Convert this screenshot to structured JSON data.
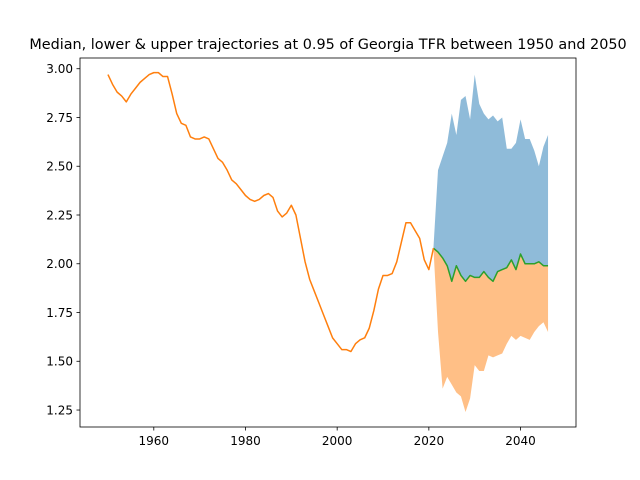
{
  "chart_data": {
    "type": "area",
    "title": "Median, lower & upper trajectories at 0.95 of Georgia TFR between 1950 and 2050",
    "xlabel": "",
    "ylabel": "",
    "xlim": [
      1943.9,
      2052.1
    ],
    "ylim": [
      1.163,
      3.055
    ],
    "grid": false,
    "legend": "none",
    "x_ticks": [
      1960,
      1980,
      2000,
      2020,
      2040
    ],
    "y_ticks": [
      1.25,
      1.5,
      1.75,
      2.0,
      2.25,
      2.5,
      2.75,
      3.0
    ],
    "colors": {
      "historical": "#ff7f0e",
      "median": "#2ca02c",
      "upper_band": "#1f77b4",
      "lower_band": "#ff7f0e"
    },
    "historical": {
      "x": [
        1950,
        1951,
        1952,
        1953,
        1954,
        1955,
        1956,
        1957,
        1958,
        1959,
        1960,
        1961,
        1962,
        1963,
        1964,
        1965,
        1966,
        1967,
        1968,
        1969,
        1970,
        1971,
        1972,
        1973,
        1974,
        1975,
        1976,
        1977,
        1978,
        1979,
        1980,
        1981,
        1982,
        1983,
        1984,
        1985,
        1986,
        1987,
        1988,
        1989,
        1990,
        1991,
        1992,
        1993,
        1994,
        1995,
        1996,
        1997,
        1998,
        1999,
        2000,
        2001,
        2002,
        2003,
        2004,
        2005,
        2006,
        2007,
        2008,
        2009,
        2010,
        2011,
        2012,
        2013,
        2014,
        2015,
        2016,
        2017,
        2018,
        2019,
        2020,
        2021
      ],
      "y": [
        2.97,
        2.92,
        2.88,
        2.86,
        2.83,
        2.87,
        2.9,
        2.93,
        2.95,
        2.97,
        2.98,
        2.98,
        2.96,
        2.96,
        2.87,
        2.77,
        2.72,
        2.71,
        2.65,
        2.64,
        2.64,
        2.65,
        2.64,
        2.59,
        2.54,
        2.52,
        2.48,
        2.43,
        2.41,
        2.38,
        2.35,
        2.33,
        2.32,
        2.33,
        2.35,
        2.36,
        2.34,
        2.27,
        2.24,
        2.26,
        2.3,
        2.25,
        2.13,
        2.01,
        1.92,
        1.86,
        1.8,
        1.74,
        1.68,
        1.62,
        1.59,
        1.56,
        1.56,
        1.55,
        1.59,
        1.61,
        1.62,
        1.67,
        1.76,
        1.87,
        1.94,
        1.94,
        1.95,
        2.01,
        2.11,
        2.21,
        2.21,
        2.17,
        2.13,
        2.02,
        1.97,
        2.08
      ]
    },
    "projection": {
      "x": [
        2021,
        2022,
        2023,
        2024,
        2025,
        2026,
        2027,
        2028,
        2029,
        2030,
        2031,
        2032,
        2033,
        2034,
        2035,
        2036,
        2037,
        2038,
        2039,
        2040,
        2041,
        2042,
        2043,
        2044,
        2045,
        2046
      ],
      "median": [
        2.08,
        2.06,
        2.03,
        1.99,
        1.91,
        1.99,
        1.94,
        1.91,
        1.94,
        1.93,
        1.93,
        1.96,
        1.93,
        1.91,
        1.96,
        1.97,
        1.98,
        2.02,
        1.97,
        2.05,
        2.0,
        2.0,
        2.0,
        2.01,
        1.99,
        1.99
      ],
      "upper": [
        2.08,
        2.48,
        2.55,
        2.62,
        2.77,
        2.66,
        2.84,
        2.86,
        2.74,
        2.97,
        2.82,
        2.77,
        2.74,
        2.76,
        2.73,
        2.75,
        2.59,
        2.59,
        2.62,
        2.74,
        2.64,
        2.64,
        2.58,
        2.5,
        2.6,
        2.66
      ],
      "lower": [
        2.08,
        1.65,
        1.36,
        1.42,
        1.38,
        1.34,
        1.32,
        1.24,
        1.31,
        1.48,
        1.45,
        1.45,
        1.53,
        1.52,
        1.53,
        1.54,
        1.59,
        1.63,
        1.61,
        1.63,
        1.62,
        1.61,
        1.65,
        1.68,
        1.7,
        1.65
      ]
    }
  }
}
